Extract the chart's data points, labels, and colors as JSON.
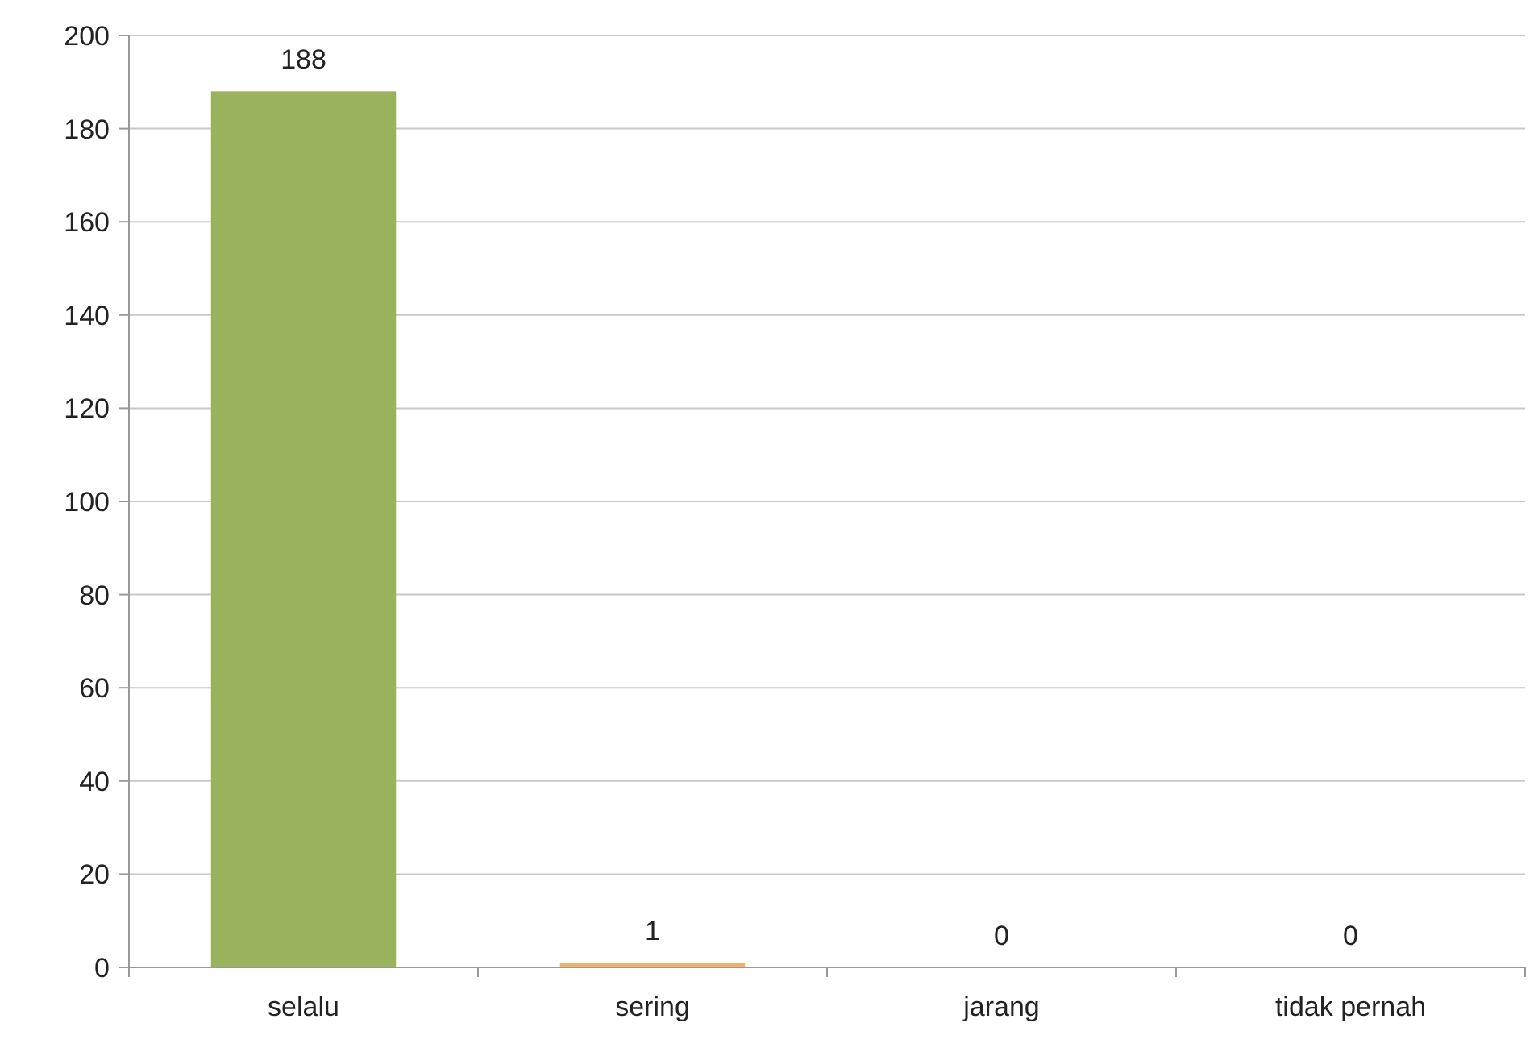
{
  "chart_data": {
    "type": "bar",
    "categories": [
      "selalu",
      "sering",
      "jarang",
      "tidak pernah"
    ],
    "values": [
      188,
      1,
      0,
      0
    ],
    "colors": [
      "#9bb25c",
      "#f2b06a",
      "#9bb25c",
      "#9bb25c"
    ],
    "ylim": [
      0,
      200
    ],
    "yticks": [
      0,
      20,
      40,
      60,
      80,
      100,
      120,
      140,
      160,
      180,
      200
    ],
    "grid": "y",
    "data_labels": true
  }
}
